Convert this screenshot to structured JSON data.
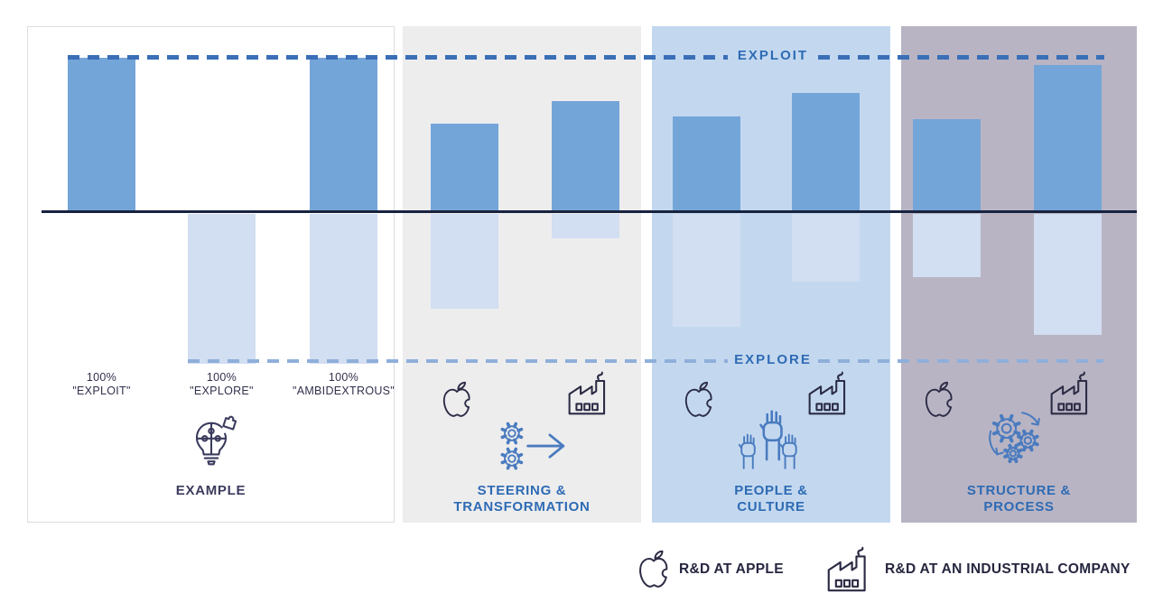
{
  "figure": {
    "exploit_label": "EXPLOIT",
    "explore_label": "EXPLORE",
    "colors": {
      "bar_exploit": "#74a5d8",
      "bar_explore": "#d2def1",
      "exploit_dash": "#3a6fb7",
      "explore_dash": "#8fafda",
      "baseline": "#17233f",
      "title_blue": "#2e6bb4",
      "title_navy": "#3b3b5e",
      "icon_navy": "#2b2b45",
      "icon_blue": "#4a7bbf",
      "panel_example_bg": "#ffffff",
      "panel_steering_bg": "#ededee",
      "panel_people_bg": "#c3d8ef",
      "panel_structure_bg": "#b9b4c4"
    },
    "panels": [
      {
        "id": "example",
        "title": "EXAMPLE",
        "title_color": "#3b3b5e",
        "icon": "puzzle-bulb-icon",
        "captions": [
          "100%\n\"EXPLOIT\"",
          "100%\n\"EXPLORE\"",
          "100%\n\"AMBIDEXTROUS\""
        ]
      },
      {
        "id": "steering",
        "title": "STEERING &\nTRANSFORMATION",
        "title_color": "#2e6bb4",
        "icon": "gears-arrow-icon"
      },
      {
        "id": "people",
        "title": "PEOPLE &\nCULTURE",
        "title_color": "#2e6bb4",
        "icon": "raised-hands-icon"
      },
      {
        "id": "structure",
        "title": "STRUCTURE &\nPROCESS",
        "title_color": "#2e6bb4",
        "icon": "gears-cycle-icon"
      }
    ],
    "legend": [
      {
        "icon": "apple-icon",
        "label": "R&D AT APPLE"
      },
      {
        "icon": "factory-icon",
        "label": "R&D AT AN INDUSTRIAL COMPANY"
      }
    ]
  },
  "chart_data": {
    "type": "bar",
    "orientation": "diverging-vertical",
    "axis": {
      "up_label": "EXPLOIT",
      "down_label": "EXPLORE",
      "up_range": [
        0,
        100
      ],
      "down_range": [
        0,
        100
      ],
      "units": "% (estimated from reference lines)"
    },
    "grid": false,
    "groups": [
      {
        "group": "EXAMPLE",
        "bars": [
          {
            "name": "100% \"EXPLOIT\"",
            "exploit": 100,
            "explore": 0
          },
          {
            "name": "100% \"EXPLORE\"",
            "exploit": 0,
            "explore": 100
          },
          {
            "name": "100% \"AMBIDEXTROUS\"",
            "exploit": 100,
            "explore": 100
          }
        ]
      },
      {
        "group": "STEERING & TRANSFORMATION",
        "bars": [
          {
            "name": "R&D at Apple",
            "exploit": 57,
            "explore": 63
          },
          {
            "name": "R&D at an industrial company",
            "exploit": 72,
            "explore": 16
          }
        ]
      },
      {
        "group": "PEOPLE & CULTURE",
        "bars": [
          {
            "name": "R&D at Apple",
            "exploit": 62,
            "explore": 75
          },
          {
            "name": "R&D at an industrial company",
            "exploit": 77,
            "explore": 45
          }
        ]
      },
      {
        "group": "STRUCTURE & PROCESS",
        "bars": [
          {
            "name": "R&D at Apple",
            "exploit": 60,
            "explore": 42
          },
          {
            "name": "R&D at an industrial company",
            "exploit": 95,
            "explore": 81
          }
        ]
      }
    ]
  }
}
